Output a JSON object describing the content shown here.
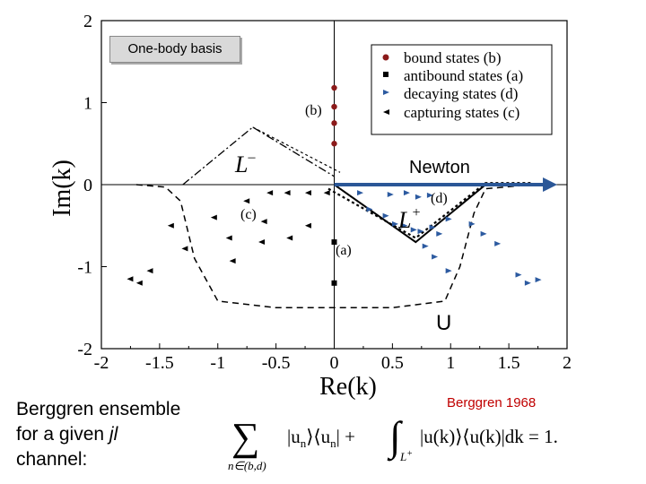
{
  "title_box": {
    "label": "One-body basis"
  },
  "annotations": {
    "newton": "Newton",
    "u_label": "U",
    "citation": "Berggren 1968"
  },
  "ensemble_caption": {
    "line1": "Berggren ensemble",
    "line2_prefix": "for a given ",
    "line2_italic": "jl",
    "line3": "channel:"
  },
  "formula": {
    "sum_symbol": "∑",
    "sum_subscript": "n∈(b,d)",
    "term1": "|u",
    "term1_sub": "n",
    "term1_mid": "⟩⟨u",
    "term1_sub2": "n",
    "term1_end": "| +",
    "integral_symbol": "∫",
    "integral_subscript": "L",
    "integral_sup": "+",
    "integrand": "|u(k)⟩⟨u(k)|dk = 1."
  },
  "chart_data": {
    "type": "scatter",
    "xlabel": "Re(k)",
    "ylabel": "Im(k)",
    "xlim": [
      -2,
      2
    ],
    "ylim": [
      -2,
      2
    ],
    "x_ticks": [
      "-2",
      "-1.5",
      "-1",
      "-0.5",
      "0",
      "0.5",
      "1",
      "1.5",
      "2"
    ],
    "y_ticks": [
      "2",
      "1",
      "0",
      "-1",
      "-2"
    ],
    "legend": [
      "bound states (b)",
      "antibound states (a)",
      "decaying states (d)",
      "capturing states (c)"
    ],
    "colors": {
      "bound": "#8b1a1a",
      "antibound": "#000000",
      "decaying": "#2c5aa0",
      "capturing": "#000000",
      "arrow": "#2b5797"
    },
    "labels": {
      "b": "(b)",
      "a": "(a)",
      "c": "(c)",
      "d": "(d)",
      "L_minus": "L",
      "L_minus_sup": "–",
      "L_plus": "L",
      "L_plus_sup": "+"
    },
    "bound_states": [
      [
        0,
        0.5
      ],
      [
        0,
        0.75
      ],
      [
        0,
        0.95
      ],
      [
        0,
        1.18
      ]
    ],
    "antibound_states": [
      [
        0,
        -0.7
      ],
      [
        0,
        -1.2
      ]
    ],
    "decaying_states": [
      [
        0.22,
        -0.1
      ],
      [
        0.48,
        -0.12
      ],
      [
        0.62,
        -0.1
      ],
      [
        0.72,
        -0.15
      ],
      [
        0.82,
        -0.13
      ],
      [
        0.3,
        -0.3
      ],
      [
        0.44,
        -0.38
      ],
      [
        0.52,
        -0.48
      ],
      [
        0.6,
        -0.5
      ],
      [
        0.68,
        -0.55
      ],
      [
        0.74,
        -0.57
      ],
      [
        0.84,
        -0.52
      ],
      [
        0.98,
        -0.42
      ],
      [
        1.18,
        -0.48
      ],
      [
        0.9,
        -0.6
      ],
      [
        0.78,
        -0.75
      ],
      [
        1.28,
        -0.6
      ],
      [
        0.86,
        -0.88
      ],
      [
        0.98,
        -1.05
      ],
      [
        1.4,
        -0.72
      ],
      [
        1.58,
        -1.1
      ],
      [
        1.66,
        -1.2
      ],
      [
        1.75,
        -1.16
      ]
    ],
    "capturing_states": [
      [
        -0.06,
        -0.1
      ],
      [
        -0.22,
        -0.1
      ],
      [
        -0.4,
        -0.1
      ],
      [
        -0.55,
        -0.1
      ],
      [
        -0.75,
        -0.2
      ],
      [
        -0.6,
        -0.45
      ],
      [
        -1.03,
        -0.4
      ],
      [
        -1.4,
        -0.5
      ],
      [
        -0.9,
        -0.65
      ],
      [
        -0.22,
        -0.5
      ],
      [
        -0.38,
        -0.65
      ],
      [
        -0.62,
        -0.7
      ],
      [
        -0.87,
        -0.93
      ],
      [
        -1.28,
        -0.78
      ],
      [
        -1.58,
        -1.05
      ],
      [
        -1.75,
        -1.15
      ],
      [
        -1.67,
        -1.2
      ]
    ],
    "L_plus_contour": [
      [
        0,
        0
      ],
      [
        0.7,
        -0.7
      ],
      [
        1.3,
        0
      ],
      [
        1.7,
        0
      ]
    ],
    "L_plus_dotted": [
      [
        -0.05,
        -0.05
      ],
      [
        0.7,
        -0.65
      ],
      [
        1.3,
        0.02
      ],
      [
        1.7,
        0.02
      ]
    ],
    "L_minus_contour": [
      [
        -1.3,
        0
      ],
      [
        -0.7,
        0.7
      ],
      [
        0,
        0.1
      ]
    ],
    "L_minus_dotted": [
      [
        -0.7,
        0.7
      ],
      [
        0.05,
        0.15
      ]
    ],
    "U_contour": [
      [
        -1.7,
        0
      ],
      [
        -1.45,
        -0.03
      ],
      [
        -1.32,
        -0.2
      ],
      [
        -1.2,
        -0.9
      ],
      [
        -1.0,
        -1.42
      ],
      [
        -0.5,
        -1.5
      ],
      [
        0.5,
        -1.5
      ],
      [
        0.95,
        -1.42
      ],
      [
        1.08,
        -1.0
      ],
      [
        1.2,
        -0.35
      ],
      [
        1.3,
        -0.05
      ],
      [
        1.7,
        0
      ]
    ],
    "arrow": {
      "from": [
        0,
        0
      ],
      "to": [
        1.9,
        0
      ]
    }
  }
}
